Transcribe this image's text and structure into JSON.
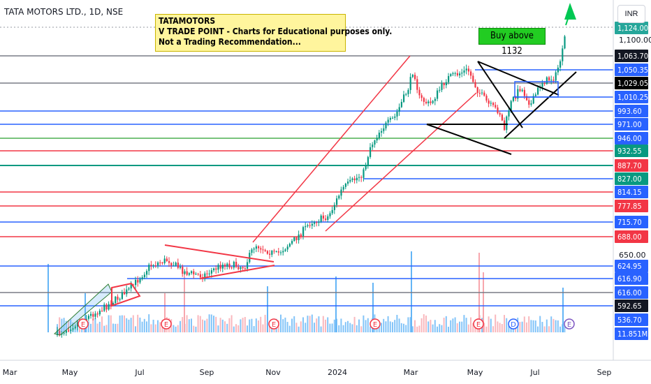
{
  "header": {
    "symbol_title": "TATA MOTORS LTD., 1D, NSE"
  },
  "currency_button": "INR",
  "note": {
    "line1": "TATAMOTORS",
    "line2": "V TRADE POINT - Charts for Educational purposes only.",
    "line3": "Not a Trading Recommendation..."
  },
  "buy_label": "Buy above 1132",
  "chart_data": {
    "type": "candlestick",
    "x_ticks": [
      "Mar",
      "May",
      "Jul",
      "Sep",
      "Nov",
      "2024",
      "Mar",
      "May",
      "Jul",
      "Sep"
    ],
    "y_ticks": [
      "1,100.00",
      "650.00"
    ],
    "price_labels": [
      {
        "text": "1,124.00",
        "value": 1124,
        "bg": "#26a69a",
        "fg": "#ffffff"
      },
      {
        "text": "1,063.70",
        "value": 1063.7,
        "bg": "#131722",
        "fg": "#ffffff"
      },
      {
        "text": "1,050.35",
        "value": 1050.35,
        "bg": "#2962ff",
        "fg": "#ffffff"
      },
      {
        "text": "1,029.05",
        "value": 1029.05,
        "bg": "#000000",
        "fg": "#ffffff"
      },
      {
        "text": "1,010.25",
        "value": 1010.25,
        "bg": "#2962ff",
        "fg": "#ffffff"
      },
      {
        "text": "993.60",
        "value": 993.6,
        "bg": "#2962ff",
        "fg": "#ffffff"
      },
      {
        "text": "971.00",
        "value": 971,
        "bg": "#2962ff",
        "fg": "#ffffff"
      },
      {
        "text": "946.00",
        "value": 946,
        "bg": "#2962ff",
        "fg": "#ffffff"
      },
      {
        "text": "932.55",
        "value": 932.55,
        "bg": "#089981",
        "fg": "#ffffff"
      },
      {
        "text": "887.70",
        "value": 887.7,
        "bg": "#f23645",
        "fg": "#ffffff"
      },
      {
        "text": "827.00",
        "value": 827,
        "bg": "#089981",
        "fg": "#ffffff"
      },
      {
        "text": "814.15",
        "value": 814.15,
        "bg": "#2962ff",
        "fg": "#ffffff"
      },
      {
        "text": "777.85",
        "value": 777.85,
        "bg": "#f23645",
        "fg": "#ffffff"
      },
      {
        "text": "715.70",
        "value": 715.7,
        "bg": "#2962ff",
        "fg": "#ffffff"
      },
      {
        "text": "688.00",
        "value": 688,
        "bg": "#f23645",
        "fg": "#ffffff"
      },
      {
        "text": "624.95",
        "value": 624.95,
        "bg": "#2962ff",
        "fg": "#ffffff"
      },
      {
        "text": "616.90",
        "value": 616.9,
        "bg": "#2962ff",
        "fg": "#ffffff"
      },
      {
        "text": "616.00",
        "value": 616,
        "bg": "#2962ff",
        "fg": "#ffffff"
      },
      {
        "text": "592.65",
        "value": 592.65,
        "bg": "#131722",
        "fg": "#ffffff"
      },
      {
        "text": "536.70",
        "value": 536.7,
        "bg": "#2962ff",
        "fg": "#ffffff"
      },
      {
        "text": "11.851M",
        "value": null,
        "bg": "#2962ff",
        "fg": "#ffffff"
      }
    ],
    "levels": [
      {
        "value": 1063.7,
        "color": "#787b86"
      },
      {
        "value": 1050.35,
        "color": "#2962ff"
      },
      {
        "value": 1029.05,
        "color": "#787b86"
      },
      {
        "value": 1010.25,
        "color": "#2962ff"
      },
      {
        "value": 993.6,
        "color": "#2962ff"
      },
      {
        "value": 971,
        "color": "#2962ff"
      },
      {
        "value": 946,
        "color": "#4caf50"
      },
      {
        "value": 932.55,
        "color": "#f23645"
      },
      {
        "value": 887.7,
        "color": "#089981"
      },
      {
        "value": 827,
        "color": "#2962ff"
      },
      {
        "value": 814.15,
        "color": "#f23645"
      },
      {
        "value": 777.85,
        "color": "#f23645"
      },
      {
        "value": 715.7,
        "color": "#2962ff"
      },
      {
        "value": 688,
        "color": "#f23645"
      },
      {
        "value": 624.95,
        "color": "#2962ff"
      },
      {
        "value": 616.9,
        "color": "#2962ff"
      },
      {
        "value": 616,
        "color": "#787b86"
      },
      {
        "value": 592.65,
        "color": "#2962ff"
      }
    ],
    "event_markers": [
      "E",
      "E",
      "E",
      "E",
      "E",
      "D",
      "E"
    ],
    "colors": {
      "up": "#089981",
      "down": "#f23645",
      "volume_up": "#64b5f6",
      "volume_down": "#f7a6ad",
      "trend": "#f23645",
      "pattern": "#000000",
      "target_arrow": "#00c853"
    }
  }
}
